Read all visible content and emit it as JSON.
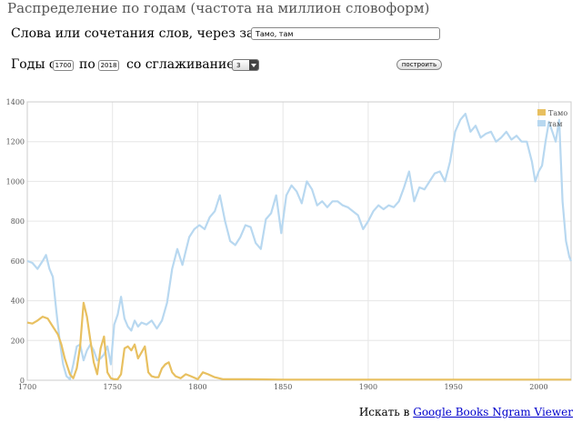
{
  "header": {
    "title": "Распределение по годам (частота на миллион словоформ)"
  },
  "query": {
    "words_label": "Слова или сочетания слов, через запятую:",
    "words_value": "Тамо, там"
  },
  "range": {
    "from_label": "Годы с",
    "from_value": "1700",
    "to_label": "по",
    "to_value": "2018",
    "smoothing_label": "со сглаживанием",
    "smoothing_value": "3",
    "build_label": "построить"
  },
  "footer": {
    "prefix": "Искать в",
    "link": "Google Books Ngram Viewer"
  },
  "chart_data": {
    "type": "line",
    "xlim": [
      1700,
      2019
    ],
    "ylim": [
      0,
      1400
    ],
    "x_ticks": [
      1700,
      1750,
      1800,
      1850,
      1900,
      1950,
      2000
    ],
    "y_ticks": [
      0,
      200,
      400,
      600,
      800,
      1000,
      1200,
      1400
    ],
    "grid": true,
    "legend_position": "top-right",
    "series": [
      {
        "name": "Тамо",
        "color": "#e8c060",
        "x": [
          1700,
          1703,
          1706,
          1709,
          1712,
          1715,
          1718,
          1720,
          1722,
          1725,
          1727,
          1729,
          1731,
          1733,
          1735,
          1737,
          1739,
          1741,
          1743,
          1745,
          1747,
          1749,
          1751,
          1753,
          1755,
          1757,
          1759,
          1761,
          1763,
          1765,
          1767,
          1769,
          1771,
          1773,
          1775,
          1777,
          1779,
          1781,
          1783,
          1785,
          1787,
          1790,
          1793,
          1796,
          1800,
          1803,
          1806,
          1810,
          1815,
          1820,
          1830,
          1850,
          1870,
          1900,
          1950,
          2000,
          2019
        ],
        "y": [
          290,
          285,
          300,
          320,
          310,
          270,
          230,
          180,
          110,
          30,
          10,
          60,
          170,
          390,
          320,
          200,
          90,
          30,
          160,
          220,
          40,
          10,
          5,
          5,
          30,
          160,
          170,
          150,
          180,
          110,
          140,
          170,
          40,
          20,
          15,
          15,
          60,
          80,
          90,
          40,
          20,
          10,
          30,
          20,
          5,
          40,
          30,
          15,
          5,
          5,
          5,
          3,
          3,
          3,
          3,
          3,
          3
        ]
      },
      {
        "name": "там",
        "color": "#b8d8f0",
        "x": [
          1700,
          1703,
          1706,
          1709,
          1711,
          1713,
          1715,
          1717,
          1719,
          1721,
          1723,
          1725,
          1727,
          1729,
          1731,
          1733,
          1735,
          1737,
          1739,
          1741,
          1743,
          1745,
          1747,
          1749,
          1751,
          1753,
          1755,
          1757,
          1759,
          1761,
          1763,
          1765,
          1767,
          1770,
          1773,
          1776,
          1779,
          1782,
          1785,
          1788,
          1791,
          1793,
          1795,
          1798,
          1801,
          1804,
          1807,
          1810,
          1813,
          1816,
          1819,
          1822,
          1825,
          1828,
          1831,
          1834,
          1837,
          1840,
          1843,
          1846,
          1849,
          1852,
          1855,
          1858,
          1861,
          1864,
          1867,
          1870,
          1873,
          1876,
          1879,
          1882,
          1885,
          1888,
          1891,
          1894,
          1897,
          1900,
          1903,
          1906,
          1909,
          1912,
          1915,
          1918,
          1921,
          1924,
          1927,
          1930,
          1933,
          1936,
          1939,
          1942,
          1945,
          1948,
          1951,
          1954,
          1957,
          1960,
          1963,
          1966,
          1969,
          1972,
          1975,
          1978,
          1981,
          1984,
          1987,
          1990,
          1993,
          1996,
          1998,
          2000,
          2002,
          2004,
          2006,
          2008,
          2010,
          2012,
          2014,
          2016,
          2018,
          2019
        ],
        "y": [
          600,
          590,
          560,
          600,
          630,
          560,
          520,
          350,
          200,
          80,
          20,
          5,
          80,
          170,
          180,
          100,
          150,
          180,
          150,
          100,
          110,
          130,
          170,
          80,
          280,
          330,
          420,
          310,
          270,
          250,
          300,
          270,
          290,
          280,
          300,
          260,
          300,
          390,
          560,
          660,
          580,
          650,
          720,
          760,
          780,
          760,
          820,
          850,
          930,
          800,
          700,
          680,
          720,
          780,
          770,
          690,
          660,
          810,
          840,
          930,
          740,
          930,
          980,
          950,
          890,
          1000,
          960,
          880,
          900,
          870,
          900,
          900,
          880,
          870,
          850,
          830,
          760,
          800,
          850,
          880,
          860,
          880,
          870,
          900,
          970,
          1050,
          900,
          970,
          960,
          1000,
          1040,
          1050,
          1000,
          1100,
          1250,
          1310,
          1340,
          1250,
          1280,
          1220,
          1240,
          1250,
          1200,
          1220,
          1250,
          1210,
          1230,
          1200,
          1200,
          1100,
          1000,
          1050,
          1080,
          1200,
          1300,
          1250,
          1200,
          1310,
          900,
          700,
          620,
          600
        ]
      }
    ]
  }
}
